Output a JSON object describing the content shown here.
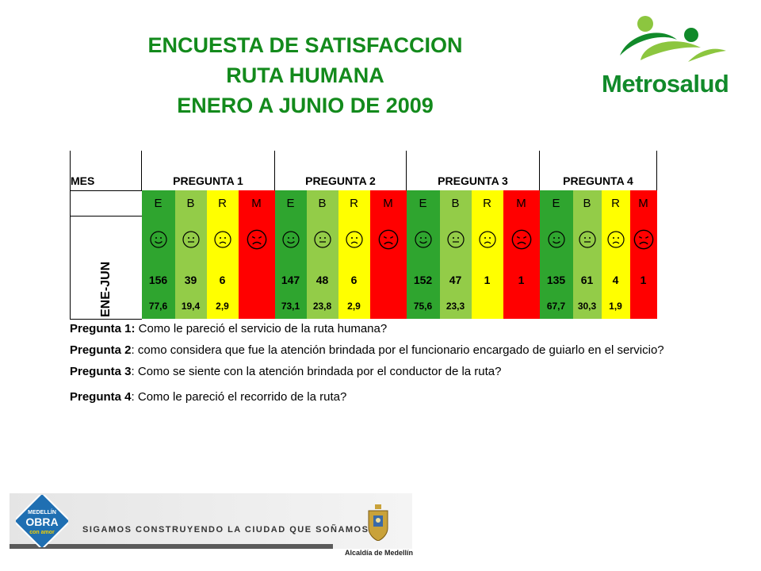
{
  "title": {
    "line1": "ENCUESTA DE SATISFACCION",
    "line2": "RUTA HUMANA",
    "line3": "ENERO A JUNIO DE 2009"
  },
  "logo": {
    "text": "Metrosalud",
    "icon": "metrosalud-people-icon",
    "colors": {
      "green": "#118a2a",
      "lime": "#8cc63f"
    }
  },
  "table": {
    "mes_header": "MES",
    "question_headers": [
      "PREGUNTA 1",
      "PREGUNTA 2",
      "PREGUNTA 3",
      "PREGUNTA 4"
    ],
    "codes": [
      "E",
      "B",
      "R",
      "M"
    ],
    "period": "ENE-JUN",
    "faces": [
      "happy-face-icon",
      "neutral-face-icon",
      "sad-face-icon",
      "angry-face-icon"
    ],
    "colors": {
      "E": "#2fa52f",
      "B": "#93cc48",
      "R": "#ffff00",
      "M": "#ff0000"
    },
    "counts": [
      [
        "156",
        "39",
        "6",
        ""
      ],
      [
        "147",
        "48",
        "6",
        ""
      ],
      [
        "152",
        "47",
        "1",
        "1"
      ],
      [
        "135",
        "61",
        "4",
        "1"
      ]
    ],
    "percents": [
      [
        "77,6",
        "19,4",
        "2,9",
        ""
      ],
      [
        "73,1",
        "23,8",
        "2,9",
        ""
      ],
      [
        "75,6",
        "23,3",
        "",
        ""
      ],
      [
        "67,7",
        "30,3",
        "1,9",
        ""
      ]
    ]
  },
  "questions": [
    {
      "label": "Pregunta 1:",
      "text": " Como le pareció el servicio de la ruta humana?"
    },
    {
      "label": "Pregunta 2",
      "text": ": como considera que fue la atención brindada por el funcionario encargado de guiarlo en el servicio?"
    },
    {
      "label": "Pregunta 3",
      "text": ": Como se siente con la atención brindada por el conductor de la ruta?"
    },
    {
      "label": "Pregunta 4",
      "text": ":  Como le pareció el recorrido de la ruta?"
    }
  ],
  "footer": {
    "badge_line1": "MEDELLÍN",
    "badge_line2": "OBRA",
    "badge_line3": "con amor",
    "slogan": "SIGAMOS CONSTRUYENDO LA CIUDAD QUE SOÑAMOS",
    "alcaldia": "Alcaldía de Medellín",
    "alcaldia_icon": "coat-of-arms-icon"
  }
}
